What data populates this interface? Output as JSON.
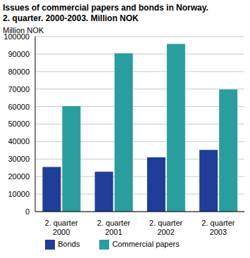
{
  "chart_data": {
    "type": "bar",
    "title": "Issues of commercial papers and bonds in Norway.",
    "subtitle": "2. quarter. 2000-2003. Million NOK",
    "y_label": "Million NOK",
    "categories": [
      "2. quarter 2000",
      "2. quarter 2001",
      "2. quarter 2002",
      "2. quarter 2003"
    ],
    "series": [
      {
        "name": "Bonds",
        "color": "#1f3d99",
        "values": [
          25500,
          22800,
          31000,
          35200
        ]
      },
      {
        "name": "Commercial papers",
        "color": "#2a9d9f",
        "values": [
          60200,
          90500,
          95800,
          69800
        ]
      }
    ],
    "ylim": [
      0,
      100000
    ],
    "yticks": [
      0,
      10000,
      20000,
      30000,
      40000,
      50000,
      60000,
      70000,
      80000,
      90000,
      100000
    ],
    "grid": true,
    "legend": "bottom"
  }
}
